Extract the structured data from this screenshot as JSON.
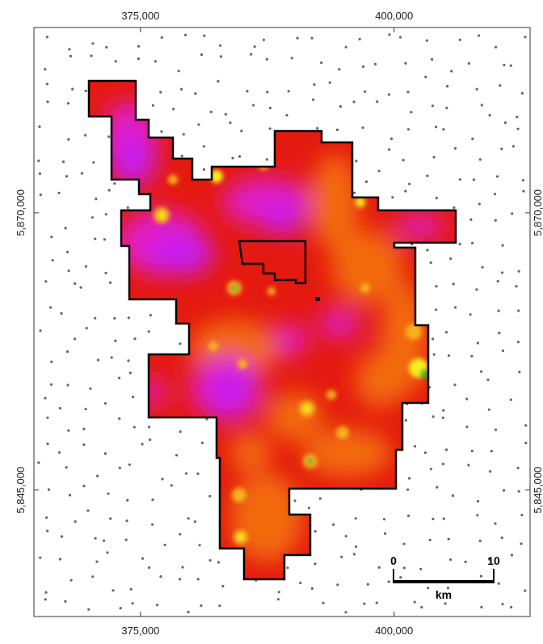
{
  "map": {
    "x_ticks": [
      {
        "value": 375000,
        "label": "375,000"
      },
      {
        "value": 400000,
        "label": "400,000"
      }
    ],
    "y_ticks": [
      {
        "value": 5870000,
        "label": "5,870,000"
      },
      {
        "value": 5845000,
        "label": "5,845,000"
      }
    ],
    "x_range": [
      364500,
      413400
    ],
    "y_range": [
      5833600,
      5886700
    ],
    "scale_bar": {
      "start_label": "0",
      "end_label": "10",
      "unit": "km"
    },
    "colors": {
      "low": "#c61ff0",
      "mid_low": "#e01ec8",
      "mid": "#e41a10",
      "mid_high": "#f36a10",
      "high": "#f5b21a",
      "peak": "#f5f01a",
      "max": "#2fae2f",
      "points": "#666666",
      "boundary": "#000000"
    }
  }
}
